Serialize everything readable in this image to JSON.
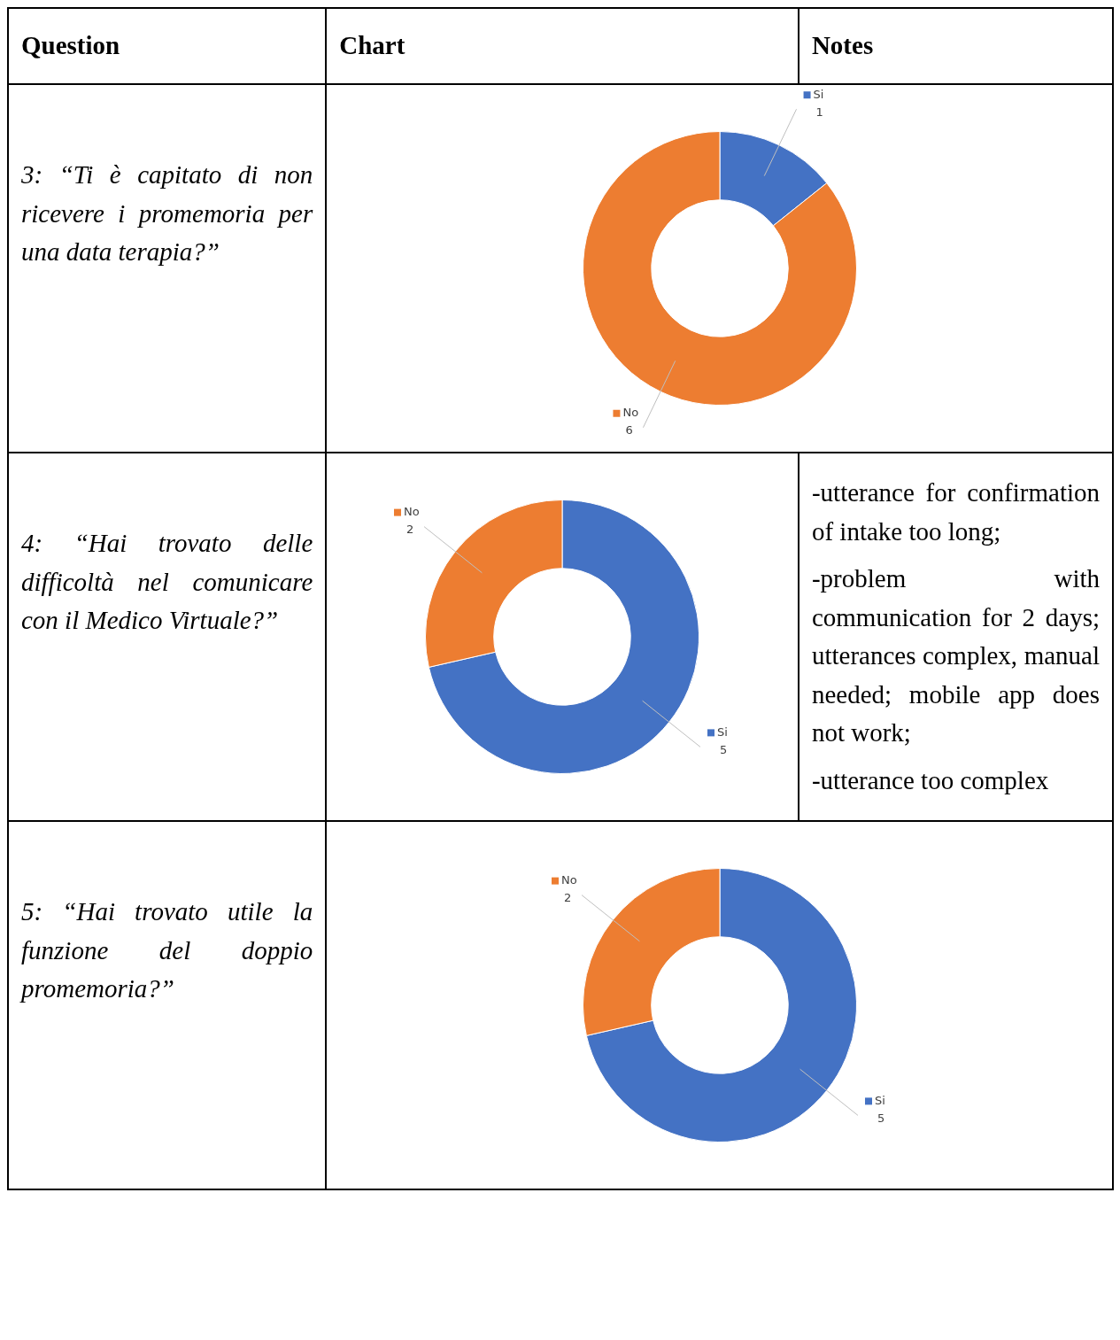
{
  "chart_data": [
    {
      "type": "other",
      "annotations": [
        "Question",
        "Chart",
        "Notes"
      ]
    },
    {
      "type": "donut",
      "title": "3: “Ti è capitato di non ricevere i promemoria per una data terapia?”",
      "categories": [
        "Si",
        "No"
      ],
      "values": [
        1,
        6
      ],
      "colors": [
        "#4472c4",
        "#ed7d31"
      ],
      "data_labels": true,
      "legend": "top right"
    },
    {
      "type": "donut",
      "title": "4: “Hai trovato delle difficoltà nel comunicare con il Medico Virtuale?”",
      "categories": [
        "Si",
        "No"
      ],
      "values": [
        5,
        2
      ],
      "colors": [
        "#4472c4",
        "#ed7d31"
      ],
      "data_labels": true,
      "legend": "right",
      "annotations": [
        "-utterance for confirmation of intake too long;",
        "-problem with communication for 2 days; utterances complex, manual needed; mobile app does not work;",
        "-utterance too complex"
      ]
    },
    {
      "type": "donut",
      "title": "5: “Hai trovato utile la funzione del doppio promemoria?”",
      "categories": [
        "Si",
        "No"
      ],
      "values": [
        5,
        2
      ],
      "colors": [
        "#4472c4",
        "#ed7d31"
      ],
      "data_labels": true,
      "legend": "right"
    }
  ]
}
